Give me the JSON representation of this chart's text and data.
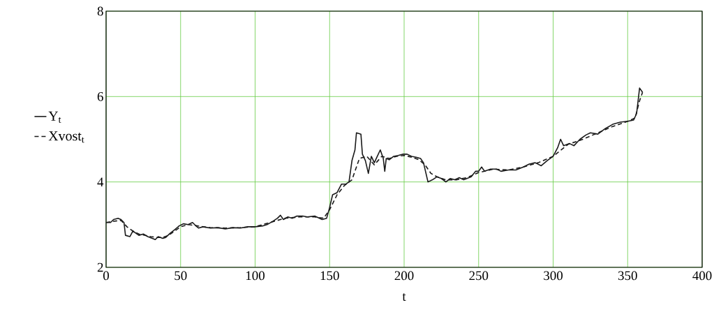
{
  "chart_data": {
    "type": "line",
    "xlabel": "t",
    "xlim": [
      0,
      400
    ],
    "ylim": [
      2,
      8
    ],
    "xticks": [
      0,
      50,
      100,
      150,
      200,
      250,
      300,
      350,
      400
    ],
    "yticks": [
      2,
      4,
      6,
      8
    ],
    "grid": true,
    "legend": "left",
    "series": [
      {
        "name": "Y$_{t}$",
        "color": "#1a1a1a",
        "line_style": "solid",
        "x": [
          0,
          3,
          5,
          8,
          10,
          12,
          13,
          16,
          18,
          20,
          22,
          25,
          28,
          31,
          33,
          35,
          38,
          40,
          43,
          46,
          49,
          52,
          55,
          58,
          60,
          62,
          65,
          70,
          75,
          80,
          85,
          90,
          95,
          100,
          105,
          108,
          112,
          115,
          117,
          119,
          122,
          125,
          128,
          132,
          135,
          140,
          145,
          148,
          150,
          152,
          155,
          158,
          161,
          163,
          165,
          167,
          168,
          171,
          172,
          174,
          176,
          178,
          180,
          182,
          184,
          186,
          187,
          188,
          190,
          193,
          196,
          199,
          202,
          205,
          208,
          211,
          213,
          216,
          219,
          222,
          225,
          228,
          231,
          234,
          237,
          240,
          245,
          248,
          250,
          252,
          254,
          258,
          262,
          265,
          270,
          275,
          280,
          284,
          288,
          292,
          296,
          300,
          303,
          305,
          307,
          311,
          314,
          318,
          322,
          325,
          330,
          335,
          340,
          345,
          350,
          354,
          356,
          358,
          360
        ],
        "values": [
          3.05,
          3.05,
          3.12,
          3.15,
          3.12,
          3.05,
          2.75,
          2.72,
          2.85,
          2.8,
          2.75,
          2.78,
          2.72,
          2.68,
          2.65,
          2.72,
          2.68,
          2.7,
          2.8,
          2.88,
          2.97,
          3.02,
          3.0,
          3.05,
          2.98,
          2.92,
          2.95,
          2.92,
          2.93,
          2.9,
          2.93,
          2.92,
          2.95,
          2.95,
          2.97,
          3.0,
          3.08,
          3.15,
          3.22,
          3.12,
          3.18,
          3.15,
          3.2,
          3.2,
          3.18,
          3.2,
          3.12,
          3.15,
          3.4,
          3.7,
          3.75,
          3.95,
          3.95,
          4.0,
          4.5,
          4.75,
          5.15,
          5.12,
          4.65,
          4.5,
          4.2,
          4.6,
          4.45,
          4.6,
          4.75,
          4.55,
          4.25,
          4.55,
          4.52,
          4.6,
          4.62,
          4.65,
          4.65,
          4.6,
          4.58,
          4.55,
          4.45,
          4.0,
          4.05,
          4.12,
          4.08,
          4.0,
          4.08,
          4.05,
          4.1,
          4.05,
          4.12,
          4.25,
          4.25,
          4.35,
          4.25,
          4.3,
          4.3,
          4.25,
          4.28,
          4.28,
          4.35,
          4.42,
          4.45,
          4.38,
          4.5,
          4.6,
          4.8,
          5.0,
          4.85,
          4.9,
          4.85,
          5.0,
          5.1,
          5.15,
          5.12,
          5.25,
          5.35,
          5.4,
          5.42,
          5.45,
          5.6,
          6.2,
          6.1
        ]
      },
      {
        "name": "Xvost$_{t}$",
        "color": "#1a1a1a",
        "line_style": "dashed",
        "x": [
          0,
          5,
          10,
          14,
          18,
          22,
          26,
          30,
          34,
          38,
          42,
          46,
          50,
          55,
          60,
          65,
          70,
          80,
          90,
          100,
          110,
          120,
          130,
          140,
          146,
          150,
          155,
          160,
          165,
          170,
          175,
          180,
          185,
          190,
          195,
          200,
          205,
          210,
          214,
          218,
          222,
          228,
          235,
          242,
          250,
          260,
          270,
          280,
          290,
          300,
          310,
          320,
          330,
          340,
          350,
          355,
          358,
          360
        ],
        "values": [
          3.05,
          3.08,
          3.1,
          2.95,
          2.85,
          2.78,
          2.75,
          2.72,
          2.7,
          2.7,
          2.75,
          2.85,
          2.95,
          3.0,
          2.98,
          2.95,
          2.93,
          2.92,
          2.93,
          2.95,
          3.05,
          3.15,
          3.18,
          3.18,
          3.15,
          3.35,
          3.7,
          3.92,
          4.05,
          4.55,
          4.6,
          4.4,
          4.6,
          4.55,
          4.6,
          4.62,
          4.58,
          4.52,
          4.4,
          4.2,
          4.12,
          4.05,
          4.05,
          4.1,
          4.22,
          4.3,
          4.28,
          4.35,
          4.45,
          4.6,
          4.88,
          5.0,
          5.15,
          5.3,
          5.42,
          5.5,
          5.9,
          6.1
        ]
      }
    ]
  }
}
